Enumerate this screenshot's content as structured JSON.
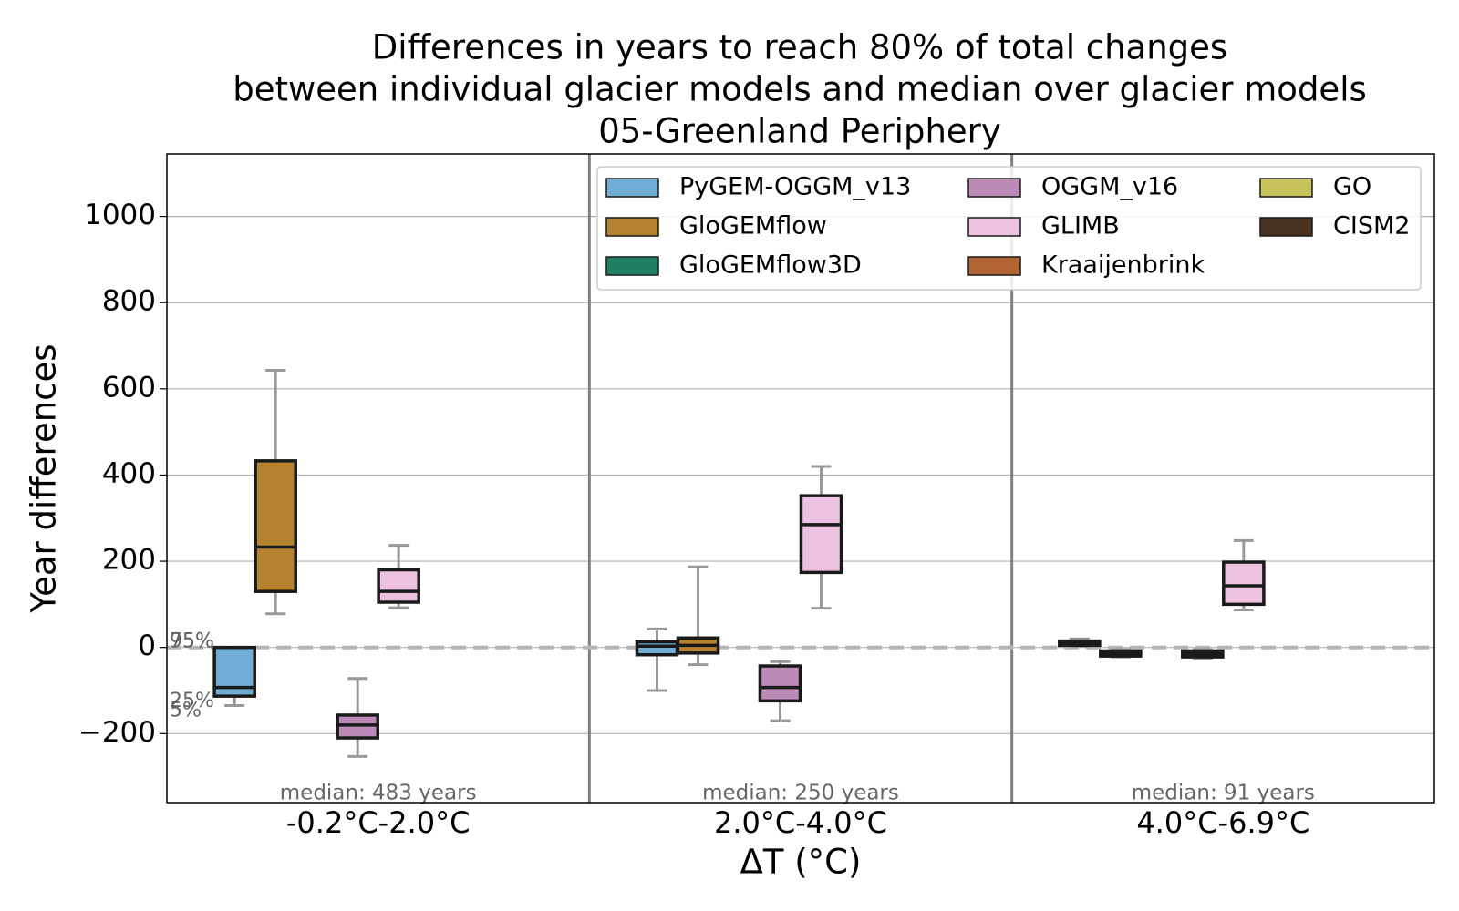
{
  "chart_data": {
    "type": "box",
    "title": [
      "Differences in years to reach 80% of total changes",
      "between individual glacier models and median over glacier models",
      "05-Greenland Periphery"
    ],
    "xlabel": "ΔT (°C)",
    "ylabel": "Year differences",
    "categories": [
      "-0.2°C-2.0°C",
      "2.0°C-4.0°C",
      "4.0°C-6.9°C"
    ],
    "group_notes": [
      "median: 483 years",
      "median: 250 years",
      "median: 91 years"
    ],
    "percentile_labels": [
      "95%",
      "75%",
      "25%",
      "5%"
    ],
    "ylim": [
      -360,
      1145
    ],
    "yticks": [
      {
        "value": -200,
        "label": "−200"
      },
      0,
      200,
      400,
      600,
      800,
      1000
    ],
    "grid": true,
    "hline": 0,
    "legend": "upper right",
    "series": [
      {
        "name": "PyGEM-OGGM_v13",
        "color": "#70acd4",
        "values": [
          {
            "whislo": -135,
            "q1": -113,
            "med": -93,
            "q3": 0,
            "whishi": 0
          },
          {
            "whislo": -100,
            "q1": -17,
            "med": 3,
            "q3": 13,
            "whishi": 43
          },
          {
            "whislo": 3,
            "q1": 5,
            "med": 10,
            "q3": 15,
            "whishi": 20
          }
        ]
      },
      {
        "name": "GloGEMflow",
        "color": "#b5822f",
        "values": [
          {
            "whislo": 78,
            "q1": 130,
            "med": 233,
            "q3": 433,
            "whishi": 643
          },
          {
            "whislo": -40,
            "q1": -13,
            "med": 5,
            "q3": 22,
            "whishi": 187
          },
          {
            "whislo": -22,
            "q1": -20,
            "med": -13,
            "q3": -8,
            "whishi": -5
          }
        ]
      },
      {
        "name": "GloGEMflow3D",
        "color": "#1f7f62",
        "values": [
          null,
          null,
          null
        ]
      },
      {
        "name": "OGGM_v16",
        "color": "#bb8ab6",
        "values": [
          {
            "whislo": -253,
            "q1": -210,
            "med": -180,
            "q3": -157,
            "whishi": -72
          },
          {
            "whislo": -170,
            "q1": -124,
            "med": -93,
            "q3": -43,
            "whishi": -33
          },
          {
            "whislo": -25,
            "q1": -22,
            "med": -15,
            "q3": -8,
            "whishi": -5
          }
        ]
      },
      {
        "name": "GLIMB",
        "color": "#ecc2e0",
        "values": [
          {
            "whislo": 92,
            "q1": 105,
            "med": 130,
            "q3": 180,
            "whishi": 237
          },
          {
            "whislo": 91,
            "q1": 174,
            "med": 285,
            "q3": 352,
            "whishi": 420
          },
          {
            "whislo": 87,
            "q1": 100,
            "med": 143,
            "q3": 198,
            "whishi": 248
          }
        ]
      },
      {
        "name": "Kraaijenbrink",
        "color": "#b06532",
        "values": [
          null,
          null,
          null
        ]
      },
      {
        "name": "GO",
        "color": "#c8c25a",
        "values": [
          null,
          null,
          null
        ]
      },
      {
        "name": "CISM2",
        "color": "#4a3220",
        "values": [
          null,
          null,
          null
        ]
      }
    ]
  }
}
